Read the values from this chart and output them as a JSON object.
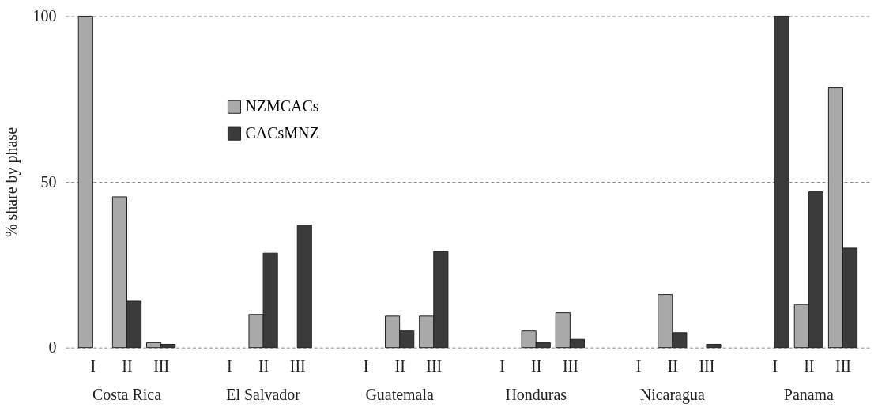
{
  "chart_data": {
    "type": "bar",
    "ylabel": "% share by phase",
    "categories": [
      "I",
      "II",
      "III",
      "I",
      "II",
      "III",
      "I",
      "II",
      "III",
      "I",
      "II",
      "III",
      "I",
      "II",
      "III",
      "I",
      "II",
      "III"
    ],
    "annotations": [
      "Costa Rica",
      "El Salvador",
      "Guatemala",
      "Honduras",
      "Nicaragua",
      "Panama"
    ],
    "series": [
      {
        "name": "NZMCACs",
        "color": "#a9a9a9",
        "values": [
          100,
          45.5,
          1.5,
          null,
          10,
          null,
          null,
          9.5,
          9.5,
          null,
          5,
          10.5,
          null,
          16,
          null,
          null,
          13,
          78.5
        ]
      },
      {
        "name": "CACsMNZ",
        "color": "#3b3b3b",
        "values": [
          null,
          14,
          1,
          null,
          28.5,
          37,
          null,
          5,
          29,
          null,
          1.5,
          2.5,
          null,
          4.5,
          1,
          100,
          47,
          30
        ]
      }
    ],
    "ylim": [
      0,
      100
    ],
    "yticks": [
      0,
      50,
      100
    ],
    "grid": "y",
    "legend": "top left"
  }
}
